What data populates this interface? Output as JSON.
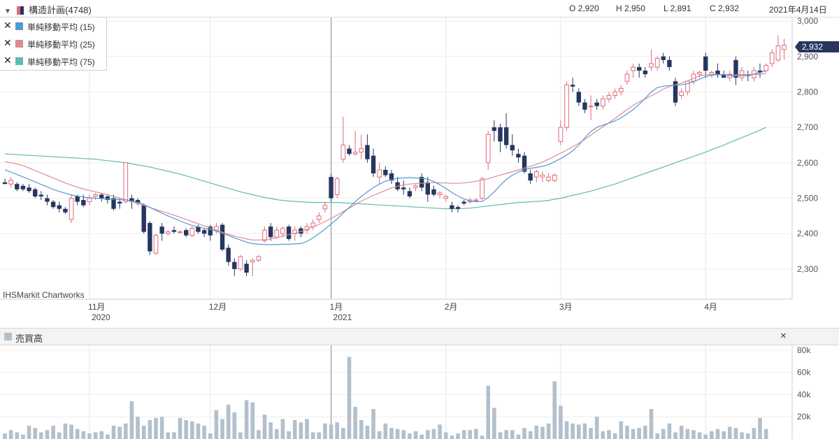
{
  "header": {
    "title": "構造計画(4748)",
    "ohlc": {
      "open": "O 2,920",
      "high": "H 2,950",
      "low": "L 2,891",
      "close": "C 2,932"
    },
    "date": "2021年4月14日"
  },
  "legend": [
    {
      "label": "単純移動平均 (15)",
      "color": "#4f9bd3"
    },
    {
      "label": "単純移動平均 (25)",
      "color": "#e08a96"
    },
    {
      "label": "単純移動平均 (75)",
      "color": "#5dbcaa"
    }
  ],
  "watermark": "IHSMarkit Chartworks",
  "last_price_label": "2,932",
  "volume_panel": {
    "title": "売買高",
    "close": "×"
  },
  "colors": {
    "up": "#e06a7a",
    "down": "#26365e",
    "ma15": "#4f9bd3",
    "ma25": "#e08a96",
    "ma75": "#5dbcaa",
    "volume": "#b3c0cc",
    "price_tag": "#26365e"
  },
  "chart_data": {
    "type": "candlestick",
    "price_axis": {
      "ticks": [
        2300,
        2400,
        2500,
        2600,
        2700,
        2800,
        2900,
        3000
      ],
      "tick_labels": [
        "2,300",
        "2,400",
        "2,500",
        "2,600",
        "2,700",
        "2,800",
        "2,900",
        "3,000"
      ],
      "ylim": [
        2215,
        3010
      ]
    },
    "volume_axis": {
      "ticks": [
        20000,
        40000,
        60000,
        80000
      ],
      "tick_labels": [
        "20k",
        "40k",
        "60k",
        "80k"
      ],
      "ylim": [
        0,
        85000
      ]
    },
    "x_axis": {
      "month_labels": [
        {
          "label": "11月",
          "year": "2020",
          "index": 14
        },
        {
          "label": "12月",
          "year": "",
          "index": 34
        },
        {
          "label": "1月",
          "year": "2021",
          "index": 54
        },
        {
          "label": "2月",
          "year": "",
          "index": 73
        },
        {
          "label": "3月",
          "year": "",
          "index": 92
        },
        {
          "label": "4月",
          "year": "",
          "index": 116
        }
      ],
      "year_separator_index": 54
    },
    "candles": [
      [
        2545,
        2555,
        2540,
        2540
      ],
      [
        2540,
        2560,
        2530,
        2550
      ],
      [
        2540,
        2545,
        2520,
        2525
      ],
      [
        2535,
        2540,
        2520,
        2525
      ],
      [
        2530,
        2540,
        2515,
        2520
      ],
      [
        2525,
        2530,
        2500,
        2505
      ],
      [
        2510,
        2520,
        2495,
        2505
      ],
      [
        2500,
        2510,
        2480,
        2490
      ],
      [
        2490,
        2495,
        2470,
        2475
      ],
      [
        2480,
        2490,
        2460,
        2470
      ],
      [
        2470,
        2475,
        2455,
        2460
      ],
      [
        2440,
        2510,
        2430,
        2500
      ],
      [
        2505,
        2510,
        2480,
        2490
      ],
      [
        2495,
        2510,
        2475,
        2480
      ],
      [
        2490,
        2510,
        2480,
        2500
      ],
      [
        2505,
        2515,
        2495,
        2510
      ],
      [
        2510,
        2515,
        2490,
        2500
      ],
      [
        2505,
        2510,
        2485,
        2495
      ],
      [
        2500,
        2510,
        2465,
        2470
      ],
      [
        2490,
        2500,
        2470,
        2485
      ],
      [
        2490,
        2600,
        2485,
        2600
      ],
      [
        2500,
        2510,
        2470,
        2490
      ],
      [
        2495,
        2500,
        2480,
        2485
      ],
      [
        2480,
        2485,
        2400,
        2405
      ],
      [
        2430,
        2435,
        2340,
        2350
      ],
      [
        2345,
        2400,
        2340,
        2395
      ],
      [
        2420,
        2430,
        2380,
        2400
      ],
      [
        2400,
        2410,
        2395,
        2405
      ],
      [
        2410,
        2420,
        2400,
        2405
      ],
      [
        2405,
        2410,
        2400,
        2405
      ],
      [
        2410,
        2415,
        2390,
        2395
      ],
      [
        2395,
        2420,
        2390,
        2415
      ],
      [
        2420,
        2425,
        2400,
        2405
      ],
      [
        2410,
        2415,
        2390,
        2400
      ],
      [
        2420,
        2425,
        2380,
        2395
      ],
      [
        2410,
        2430,
        2400,
        2420
      ],
      [
        2425,
        2430,
        2350,
        2355
      ],
      [
        2360,
        2370,
        2310,
        2320
      ],
      [
        2320,
        2330,
        2280,
        2300
      ],
      [
        2300,
        2340,
        2295,
        2335
      ],
      [
        2315,
        2325,
        2280,
        2290
      ],
      [
        2320,
        2330,
        2280,
        2325
      ],
      [
        2325,
        2340,
        2320,
        2335
      ],
      [
        2380,
        2420,
        2375,
        2410
      ],
      [
        2420,
        2430,
        2380,
        2390
      ],
      [
        2390,
        2420,
        2385,
        2410
      ],
      [
        2400,
        2420,
        2390,
        2415
      ],
      [
        2420,
        2425,
        2380,
        2385
      ],
      [
        2400,
        2420,
        2380,
        2410
      ],
      [
        2415,
        2420,
        2390,
        2400
      ],
      [
        2410,
        2430,
        2400,
        2420
      ],
      [
        2420,
        2440,
        2410,
        2430
      ],
      [
        2440,
        2460,
        2430,
        2450
      ],
      [
        2470,
        2490,
        2460,
        2480
      ],
      [
        2560,
        2570,
        2490,
        2500
      ],
      [
        2510,
        2560,
        2500,
        2555
      ],
      [
        2610,
        2730,
        2600,
        2650
      ],
      [
        2640,
        2650,
        2620,
        2625
      ],
      [
        2625,
        2690,
        2620,
        2630
      ],
      [
        2630,
        2680,
        2610,
        2640
      ],
      [
        2650,
        2680,
        2600,
        2610
      ],
      [
        2620,
        2640,
        2560,
        2570
      ],
      [
        2560,
        2600,
        2540,
        2580
      ],
      [
        2580,
        2590,
        2560,
        2565
      ],
      [
        2570,
        2580,
        2540,
        2550
      ],
      [
        2545,
        2560,
        2520,
        2525
      ],
      [
        2530,
        2550,
        2510,
        2525
      ],
      [
        2520,
        2530,
        2500,
        2505
      ],
      [
        2530,
        2540,
        2520,
        2535
      ],
      [
        2560,
        2570,
        2520,
        2530
      ],
      [
        2545,
        2560,
        2490,
        2510
      ],
      [
        2525,
        2535,
        2505,
        2510
      ],
      [
        2510,
        2520,
        2500,
        2515
      ],
      [
        2500,
        2510,
        2490,
        2505
      ],
      [
        2480,
        2490,
        2460,
        2470
      ],
      [
        2475,
        2480,
        2460,
        2470
      ],
      [
        2490,
        2495,
        2480,
        2485
      ],
      [
        2490,
        2500,
        2485,
        2495
      ],
      [
        2495,
        2500,
        2490,
        2495
      ],
      [
        2500,
        2560,
        2495,
        2555
      ],
      [
        2600,
        2690,
        2580,
        2680
      ],
      [
        2700,
        2720,
        2660,
        2690
      ],
      [
        2700,
        2710,
        2630,
        2660
      ],
      [
        2700,
        2740,
        2640,
        2650
      ],
      [
        2650,
        2680,
        2620,
        2635
      ],
      [
        2625,
        2640,
        2600,
        2615
      ],
      [
        2620,
        2630,
        2570,
        2575
      ],
      [
        2570,
        2580,
        2540,
        2550
      ],
      [
        2560,
        2580,
        2545,
        2575
      ],
      [
        2560,
        2575,
        2545,
        2565
      ],
      [
        2550,
        2570,
        2545,
        2560
      ],
      [
        2550,
        2570,
        2545,
        2565
      ],
      [
        2660,
        2720,
        2650,
        2700
      ],
      [
        2700,
        2830,
        2690,
        2820
      ],
      [
        2820,
        2840,
        2800,
        2815
      ],
      [
        2800,
        2810,
        2760,
        2770
      ],
      [
        2770,
        2780,
        2740,
        2750
      ],
      [
        2760,
        2790,
        2720,
        2760
      ],
      [
        2770,
        2780,
        2750,
        2760
      ],
      [
        2760,
        2790,
        2750,
        2780
      ],
      [
        2780,
        2800,
        2770,
        2790
      ],
      [
        2790,
        2810,
        2780,
        2800
      ],
      [
        2800,
        2820,
        2790,
        2810
      ],
      [
        2830,
        2860,
        2820,
        2850
      ],
      [
        2860,
        2880,
        2840,
        2870
      ],
      [
        2870,
        2880,
        2840,
        2860
      ],
      [
        2860,
        2870,
        2840,
        2850
      ],
      [
        2870,
        2920,
        2860,
        2880
      ],
      [
        2870,
        2900,
        2860,
        2895
      ],
      [
        2900,
        2910,
        2880,
        2890
      ],
      [
        2890,
        2900,
        2860,
        2870
      ],
      [
        2830,
        2840,
        2760,
        2770
      ],
      [
        2790,
        2810,
        2780,
        2800
      ],
      [
        2800,
        2830,
        2790,
        2830
      ],
      [
        2830,
        2860,
        2820,
        2850
      ],
      [
        2850,
        2860,
        2840,
        2855
      ],
      [
        2900,
        2910,
        2840,
        2860
      ],
      [
        2850,
        2860,
        2840,
        2855
      ],
      [
        2860,
        2880,
        2840,
        2850
      ],
      [
        2850,
        2860,
        2840,
        2840
      ],
      [
        2840,
        2860,
        2830,
        2850
      ],
      [
        2890,
        2900,
        2820,
        2840
      ],
      [
        2840,
        2870,
        2830,
        2860
      ],
      [
        2850,
        2860,
        2830,
        2845
      ],
      [
        2840,
        2870,
        2830,
        2860
      ],
      [
        2860,
        2880,
        2840,
        2855
      ],
      [
        2860,
        2880,
        2855,
        2875
      ],
      [
        2880,
        2920,
        2870,
        2910
      ],
      [
        2890,
        2960,
        2885,
        2930
      ],
      [
        2920,
        2950,
        2891,
        2932
      ]
    ],
    "ma15": [
      2580,
      2574,
      2567,
      2560,
      2553,
      2546,
      2539,
      2532,
      2525,
      2519,
      2514,
      2509,
      2506,
      2503,
      2501,
      2500,
      2499,
      2498,
      2497,
      2496,
      2495,
      2492,
      2488,
      2482,
      2474,
      2466,
      2458,
      2450,
      2443,
      2436,
      2429,
      2423,
      2419,
      2415,
      2411,
      2407,
      2401,
      2395,
      2388,
      2382,
      2376,
      2372,
      2370,
      2369,
      2369,
      2369,
      2370,
      2370,
      2371,
      2372,
      2378,
      2388,
      2400,
      2413,
      2427,
      2441,
      2458,
      2474,
      2490,
      2505,
      2518,
      2530,
      2540,
      2548,
      2553,
      2556,
      2557,
      2558,
      2557,
      2556,
      2554,
      2547,
      2538,
      2527,
      2516,
      2506,
      2498,
      2492,
      2490,
      2491,
      2502,
      2518,
      2536,
      2553,
      2565,
      2574,
      2580,
      2584,
      2587,
      2590,
      2595,
      2603,
      2612,
      2622,
      2634,
      2650,
      2670,
      2688,
      2700,
      2706,
      2712,
      2718,
      2727,
      2738,
      2750,
      2765,
      2782,
      2800,
      2812,
      2816,
      2818,
      2819,
      2820,
      2823,
      2829,
      2836,
      2843,
      2847,
      2849,
      2848,
      2846,
      2845,
      2846,
      2847,
      2850,
      2854,
      2860
    ],
    "ma25": [
      2603,
      2600,
      2597,
      2592,
      2585,
      2578,
      2571,
      2564,
      2557,
      2550,
      2543,
      2537,
      2531,
      2526,
      2522,
      2518,
      2514,
      2510,
      2505,
      2500,
      2496,
      2491,
      2486,
      2480,
      2474,
      2468,
      2463,
      2458,
      2452,
      2446,
      2440,
      2434,
      2428,
      2422,
      2416,
      2410,
      2404,
      2398,
      2393,
      2389,
      2385,
      2382,
      2382,
      2383,
      2385,
      2389,
      2393,
      2397,
      2401,
      2406,
      2412,
      2419,
      2426,
      2434,
      2443,
      2452,
      2462,
      2472,
      2482,
      2492,
      2500,
      2508,
      2515,
      2522,
      2529,
      2534,
      2538,
      2540,
      2541,
      2542,
      2543,
      2544,
      2543,
      2543,
      2542,
      2542,
      2543,
      2545,
      2548,
      2551,
      2555,
      2560,
      2565,
      2570,
      2575,
      2580,
      2585,
      2590,
      2596,
      2602,
      2610,
      2618,
      2627,
      2636,
      2645,
      2655,
      2666,
      2678,
      2690,
      2702,
      2713,
      2725,
      2738,
      2750,
      2762,
      2772,
      2780,
      2789,
      2798,
      2808,
      2815,
      2820,
      2825,
      2831,
      2838,
      2845,
      2848,
      2849,
      2849,
      2848,
      2848,
      2848,
      2849,
      2849,
      2849,
      2850,
      2852
    ],
    "ma75": [
      2625,
      2624,
      2623,
      2622,
      2621,
      2620,
      2619,
      2618,
      2617,
      2616,
      2615,
      2614,
      2613,
      2612,
      2611,
      2610,
      2608,
      2606,
      2604,
      2602,
      2600,
      2597,
      2594,
      2591,
      2588,
      2584,
      2580,
      2576,
      2572,
      2568,
      2563,
      2558,
      2553,
      2548,
      2543,
      2538,
      2533,
      2528,
      2523,
      2518,
      2514,
      2510,
      2506,
      2502,
      2499,
      2496,
      2494,
      2492,
      2491,
      2490,
      2489,
      2488,
      2488,
      2488,
      2488,
      2488,
      2487,
      2486,
      2485,
      2484,
      2483,
      2482,
      2481,
      2480,
      2479,
      2478,
      2477,
      2476,
      2475,
      2474,
      2473,
      2472,
      2471,
      2470,
      2470,
      2470,
      2471,
      2472,
      2474,
      2476,
      2478,
      2480,
      2482,
      2484,
      2486,
      2488,
      2489,
      2490,
      2491,
      2492,
      2494,
      2497,
      2500,
      2504,
      2508,
      2512,
      2516,
      2520,
      2525,
      2530,
      2535,
      2540,
      2546,
      2552,
      2558,
      2564,
      2570,
      2576,
      2582,
      2588,
      2594,
      2600,
      2606,
      2612,
      2618,
      2624,
      2630,
      2637,
      2643,
      2650,
      2657,
      2664,
      2671,
      2678,
      2685,
      2692,
      2700
    ],
    "volume": [
      5000,
      8000,
      6000,
      4000,
      12000,
      10000,
      6000,
      8000,
      12000,
      6000,
      14000,
      13000,
      9000,
      7000,
      5000,
      6000,
      7000,
      4000,
      12000,
      11000,
      14000,
      34000,
      20000,
      12000,
      17000,
      19000,
      20000,
      6000,
      6000,
      19000,
      17000,
      16000,
      14000,
      12000,
      5000,
      26000,
      18000,
      31000,
      24000,
      6000,
      35000,
      33000,
      8000,
      22000,
      15000,
      9000,
      18000,
      7000,
      17000,
      15000,
      18000,
      6000,
      6000,
      14000,
      13000,
      15000,
      10000,
      74000,
      29000,
      17000,
      12000,
      27000,
      7000,
      14000,
      10000,
      9000,
      8000,
      5000,
      7000,
      4000,
      8000,
      9000,
      13000,
      6000,
      3000,
      5000,
      8000,
      8000,
      9000,
      3000,
      48000,
      28000,
      6000,
      8000,
      8000,
      4000,
      10000,
      7000,
      12000,
      11000,
      14000,
      52000,
      30000,
      16000,
      14000,
      13000,
      14000,
      10000,
      20000,
      7000,
      8000,
      5000,
      16000,
      12000,
      9000,
      10000,
      12000,
      27000,
      5000,
      9000,
      14000,
      6000,
      12000,
      9000,
      8000,
      6000,
      4000,
      7000,
      9000,
      7000,
      11000,
      10000,
      6000,
      5000,
      10000,
      19000,
      9000
    ]
  }
}
